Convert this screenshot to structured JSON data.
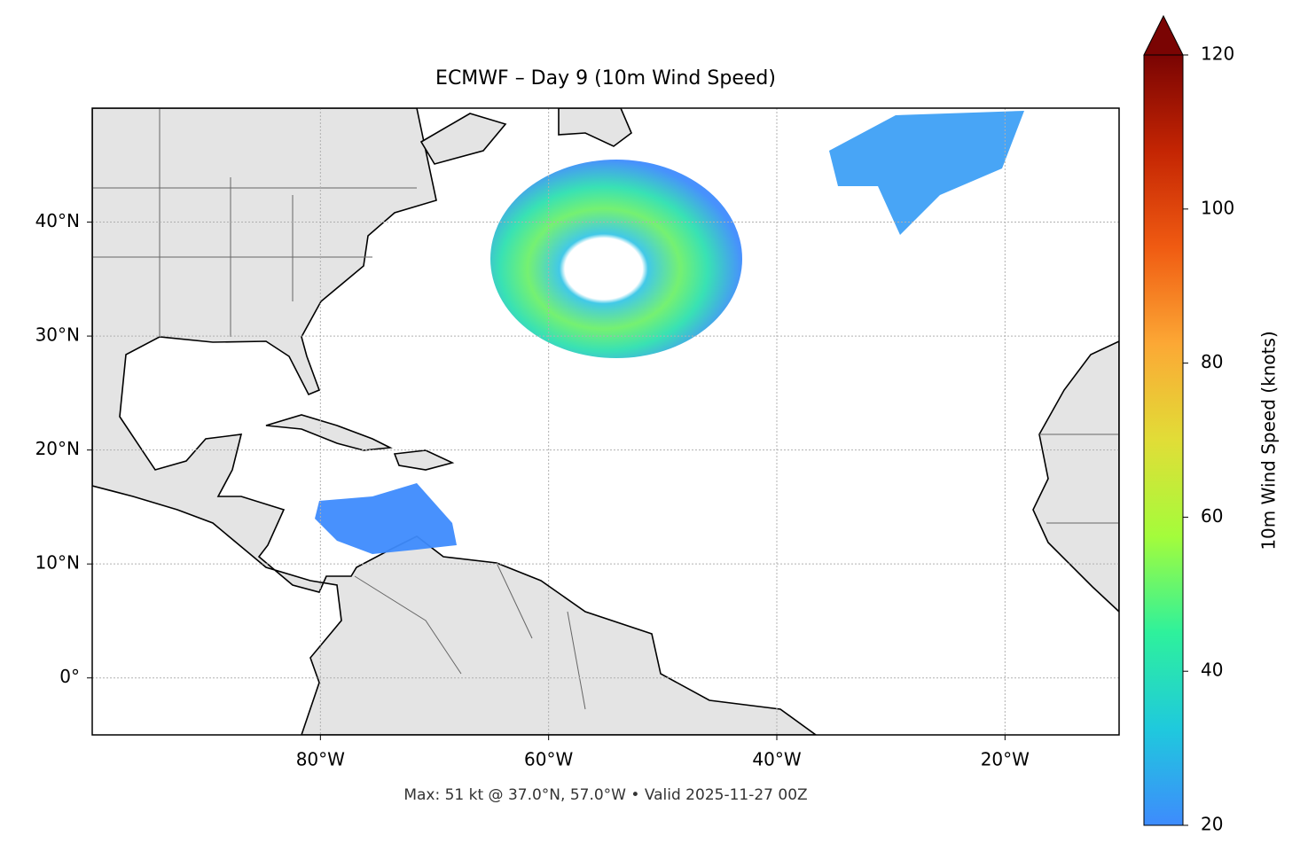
{
  "chart_data": {
    "type": "map",
    "title": "ECMWF – Day 9 (10m Wind Speed)",
    "footer": "Max: 51 kt @ 37.0°N, 57.0°W • Valid 2025-11-27 00Z",
    "xlim": [
      -100,
      -10
    ],
    "ylim": [
      -5,
      50
    ],
    "xticks": [
      {
        "value": -80,
        "label": "80°W"
      },
      {
        "value": -60,
        "label": "60°W"
      },
      {
        "value": -40,
        "label": "40°W"
      },
      {
        "value": -20,
        "label": "20°W"
      }
    ],
    "yticks": [
      {
        "value": 0,
        "label": "0°"
      },
      {
        "value": 10,
        "label": "10°N"
      },
      {
        "value": 20,
        "label": "20°N"
      },
      {
        "value": 30,
        "label": "30°N"
      },
      {
        "value": 40,
        "label": "40°N"
      }
    ],
    "grid": true,
    "colorbar": {
      "label": "10m Wind Speed (knots)",
      "lim": [
        20,
        120
      ],
      "ticks": [
        20,
        40,
        60,
        80,
        100,
        120
      ],
      "colors": [
        "#3e8bfd",
        "#1fc9dd",
        "#2ef19c",
        "#a4fc3b",
        "#e1dd37",
        "#fca835",
        "#f05b12",
        "#c42503",
        "#7a0403"
      ]
    }
  }
}
